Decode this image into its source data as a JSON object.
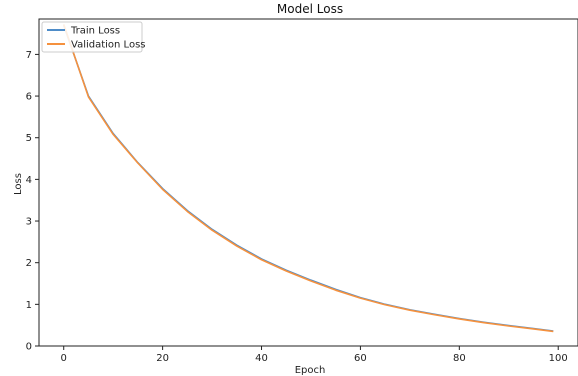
{
  "chart_data": {
    "type": "line",
    "title": "Model Loss",
    "xlabel": "Epoch",
    "ylabel": "Loss",
    "xlim": [
      -5,
      104
    ],
    "ylim": [
      0,
      7.85
    ],
    "xticks": [
      0,
      20,
      40,
      60,
      80,
      100
    ],
    "yticks": [
      0,
      1,
      2,
      3,
      4,
      5,
      6,
      7
    ],
    "grid": false,
    "legend_position": "top-left",
    "series": [
      {
        "name": "Train Loss",
        "color": "#4e8cc8",
        "x": [
          0,
          5,
          10,
          15,
          20,
          25,
          30,
          35,
          40,
          45,
          50,
          55,
          60,
          65,
          70,
          75,
          80,
          85,
          90,
          95,
          99
        ],
        "y": [
          7.7,
          6.0,
          5.1,
          4.4,
          3.78,
          3.25,
          2.8,
          2.42,
          2.09,
          1.82,
          1.58,
          1.36,
          1.16,
          1.0,
          0.87,
          0.76,
          0.66,
          0.57,
          0.49,
          0.42,
          0.36
        ]
      },
      {
        "name": "Validation Loss",
        "color": "#f5913e",
        "x": [
          0,
          5,
          10,
          15,
          20,
          25,
          30,
          35,
          40,
          45,
          50,
          55,
          60,
          65,
          70,
          75,
          80,
          85,
          90,
          95,
          99
        ],
        "y": [
          7.72,
          5.98,
          5.08,
          4.39,
          3.76,
          3.23,
          2.78,
          2.4,
          2.07,
          1.8,
          1.56,
          1.34,
          1.15,
          0.99,
          0.86,
          0.75,
          0.65,
          0.56,
          0.48,
          0.41,
          0.35
        ]
      }
    ]
  }
}
